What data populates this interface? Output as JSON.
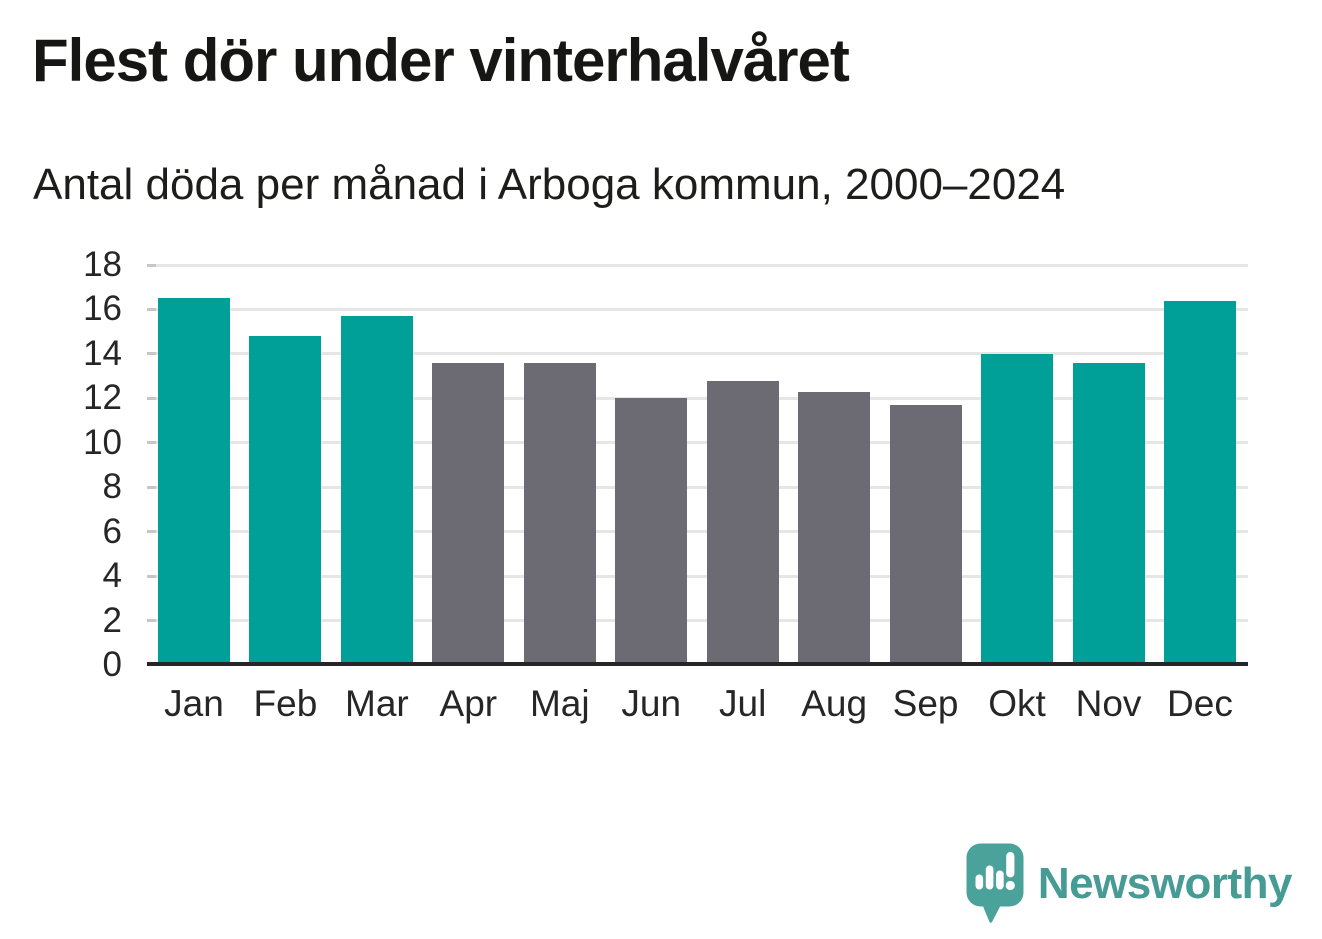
{
  "title": "Flest dör under vinterhalvåret",
  "subtitle": "Antal döda per månad i Arboga kommun, 2000–2024",
  "chart_data": {
    "type": "bar",
    "title": "Flest dör under vinterhalvåret",
    "subtitle": "Antal döda per månad i Arboga kommun, 2000–2024",
    "categories": [
      "Jan",
      "Feb",
      "Mar",
      "Apr",
      "Maj",
      "Jun",
      "Jul",
      "Aug",
      "Sep",
      "Okt",
      "Nov",
      "Dec"
    ],
    "values": [
      16.5,
      14.8,
      15.7,
      13.6,
      13.6,
      12.0,
      12.8,
      12.3,
      11.7,
      14.0,
      13.6,
      16.4
    ],
    "bar_colors": [
      "#00A099",
      "#00A099",
      "#00A099",
      "#6C6A72",
      "#6C6A72",
      "#6C6A72",
      "#6C6A72",
      "#6C6A72",
      "#6C6A72",
      "#00A099",
      "#00A099",
      "#00A099"
    ],
    "highlight_color": "#00A099",
    "base_color": "#6C6A72",
    "highlighted_months": [
      "Jan",
      "Feb",
      "Mar",
      "Okt",
      "Nov",
      "Dec"
    ],
    "xlabel": "",
    "ylabel": "",
    "ylim": [
      0,
      18
    ],
    "yticks": [
      0,
      2,
      4,
      6,
      8,
      10,
      12,
      14,
      16,
      18
    ],
    "grid": true,
    "gridline_color": "#E6E6E6",
    "axis_color": "#262626",
    "legend_position": "none"
  },
  "footer": {
    "brand": "Newsworthy",
    "brand_color": "#479B95",
    "icon": "newsworthy-speech-bubble-bar-chart-icon",
    "icon_color": "#4BA29B"
  }
}
